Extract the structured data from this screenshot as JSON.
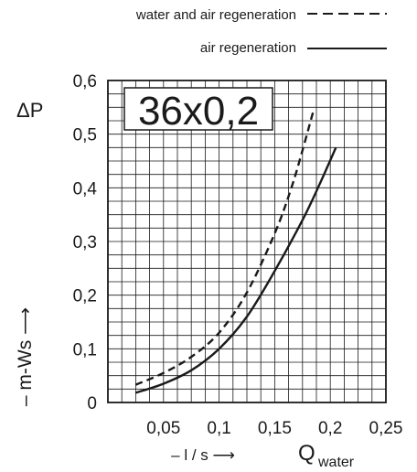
{
  "chart_data": {
    "type": "line",
    "badge": "36x0,2",
    "ylabel_symbol": "ΔP",
    "ylabel_unit": "– m-Ws ⟶",
    "xlabel_unit": "– l / s ⟶",
    "xlabel_symbol": "Q",
    "xlabel_subscript": "water",
    "xlim": [
      0,
      0.25
    ],
    "ylim": [
      0,
      0.6
    ],
    "x_ticks": [
      {
        "value": 0.05,
        "label": "0,05"
      },
      {
        "value": 0.1,
        "label": "0,1"
      },
      {
        "value": 0.15,
        "label": "0,15"
      },
      {
        "value": 0.2,
        "label": "0,2"
      },
      {
        "value": 0.25,
        "label": "0,25"
      }
    ],
    "y_ticks": [
      {
        "value": 0,
        "label": "0"
      },
      {
        "value": 0.1,
        "label": "0,1"
      },
      {
        "value": 0.2,
        "label": "0,2"
      },
      {
        "value": 0.3,
        "label": "0,3"
      },
      {
        "value": 0.4,
        "label": "0,4"
      },
      {
        "value": 0.5,
        "label": "0,5"
      },
      {
        "value": 0.6,
        "label": "0,6"
      }
    ],
    "grid": true,
    "grid_spacing_x": 0.0125,
    "grid_spacing_y": 0.025,
    "legend_position": "top",
    "series": [
      {
        "name": "water and air regeneration",
        "style": "dashed",
        "color": "#1a1a1a",
        "x": [
          0.025,
          0.05,
          0.075,
          0.1,
          0.125,
          0.15,
          0.165,
          0.175,
          0.185
        ],
        "y": [
          0.033,
          0.055,
          0.085,
          0.13,
          0.205,
          0.315,
          0.4,
          0.47,
          0.545
        ]
      },
      {
        "name": "air regeneration",
        "style": "solid",
        "color": "#1a1a1a",
        "x": [
          0.025,
          0.05,
          0.075,
          0.1,
          0.125,
          0.15,
          0.175,
          0.19,
          0.205
        ],
        "y": [
          0.018,
          0.035,
          0.06,
          0.1,
          0.16,
          0.245,
          0.34,
          0.405,
          0.475
        ]
      }
    ]
  }
}
